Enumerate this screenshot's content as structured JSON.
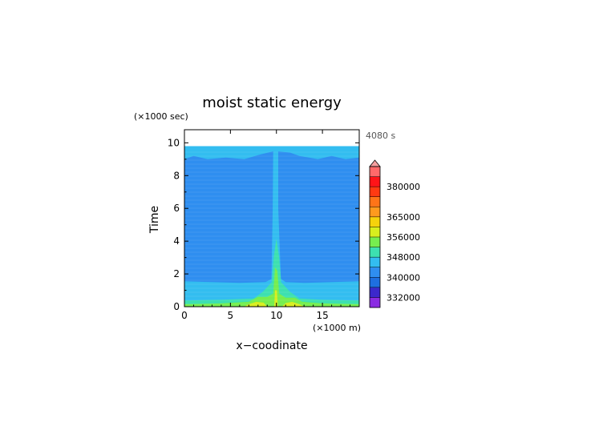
{
  "chart_data": {
    "type": "heatmap",
    "title": "moist static energy",
    "xlabel": "x−coodinate",
    "ylabel": "Time",
    "x_units": "(×1000 m)",
    "y_units": "(×1000 sec)",
    "annotation": "4080 s",
    "xlim": [
      0,
      19
    ],
    "ylim": [
      0,
      10.8
    ],
    "x_ticks": [
      0,
      5,
      10,
      15
    ],
    "y_ticks": [
      0,
      2,
      4,
      6,
      8,
      10
    ],
    "data_top_time": 9.8,
    "colorbar": {
      "levels": [
        328000,
        332000,
        336000,
        340000,
        344000,
        348000,
        352000,
        356000,
        360000,
        365000,
        370000,
        375000,
        380000,
        385000,
        390000
      ],
      "colors": [
        "#8a2be2",
        "#3b28cc",
        "#1e6fe0",
        "#2f8ef0",
        "#33bdf0",
        "#3de0b0",
        "#76ee4f",
        "#d8ee1e",
        "#f6d20c",
        "#ff9a1e",
        "#ff7418",
        "#ff3a12",
        "#ff1418",
        "#ff6a6a"
      ],
      "tick_labels": [
        "332000",
        "340000",
        "348000",
        "356000",
        "365000",
        "380000"
      ],
      "extend": "max"
    },
    "bands": [
      {
        "level": 340000,
        "description": "background field value in domain interior"
      },
      {
        "level": 344000,
        "description": "upper layer near top and boundary layer below ~1.5"
      },
      {
        "level": 348000,
        "description": "layer below ~0.4 and central column"
      },
      {
        "level": 352000,
        "description": "surface layer and column core"
      },
      {
        "level": 356000,
        "description": "surface maxima near x=8 and x=12"
      }
    ]
  }
}
